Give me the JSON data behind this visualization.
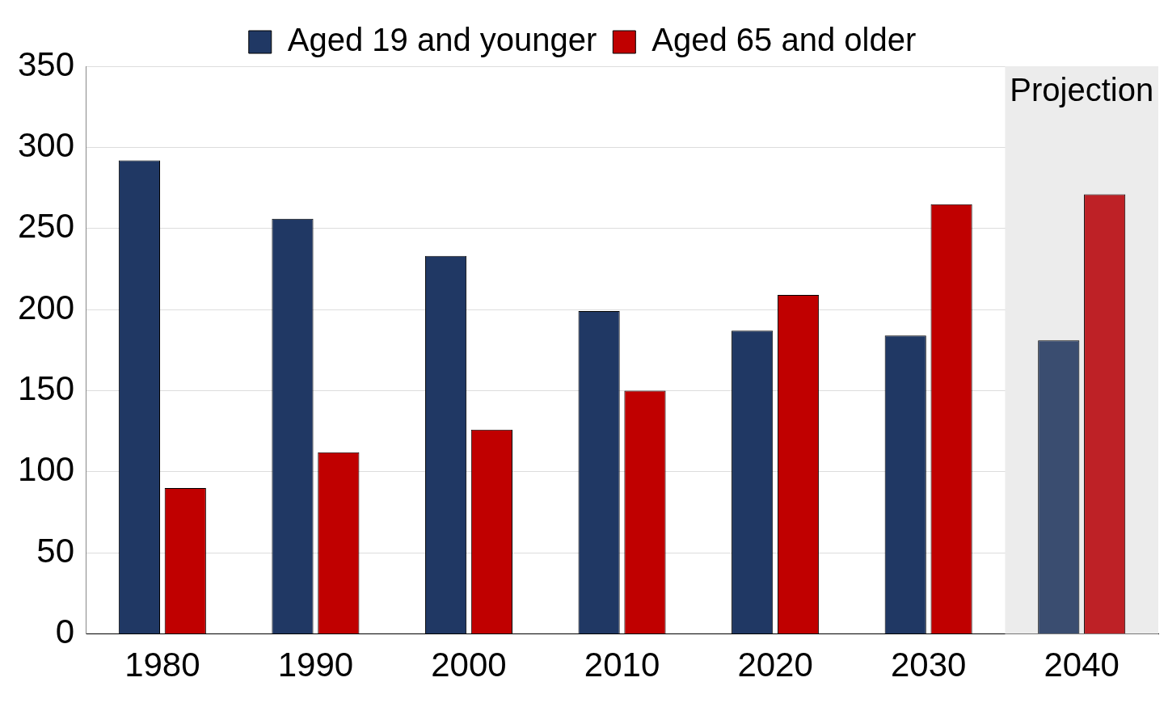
{
  "chart_data": {
    "type": "bar",
    "categories": [
      "1980",
      "1990",
      "2000",
      "2010",
      "2020",
      "2030",
      "2040"
    ],
    "series": [
      {
        "name": "Aged 19 and younger",
        "color": "#203864",
        "colors": [
          "#203864",
          "#203864",
          "#203864",
          "#203864",
          "#203864",
          "#203864",
          "#3a4d70"
        ],
        "values": [
          292,
          256,
          233,
          199,
          187,
          184,
          181
        ]
      },
      {
        "name": "Aged 65 and older",
        "color": "#c00000",
        "colors": [
          "#c00000",
          "#c00000",
          "#c00000",
          "#c00000",
          "#c00000",
          "#c00000",
          "#be2126"
        ],
        "values": [
          90,
          112,
          126,
          150,
          209,
          265,
          271
        ]
      }
    ],
    "ylim": [
      0,
      350
    ],
    "yticks": [
      0,
      50,
      100,
      150,
      200,
      250,
      300,
      350
    ],
    "grid": "y",
    "legend": "top",
    "bands": [
      {
        "axis": "x",
        "from": "2040",
        "to": "2040",
        "label": "Projection",
        "color": "#ececec"
      }
    ]
  }
}
